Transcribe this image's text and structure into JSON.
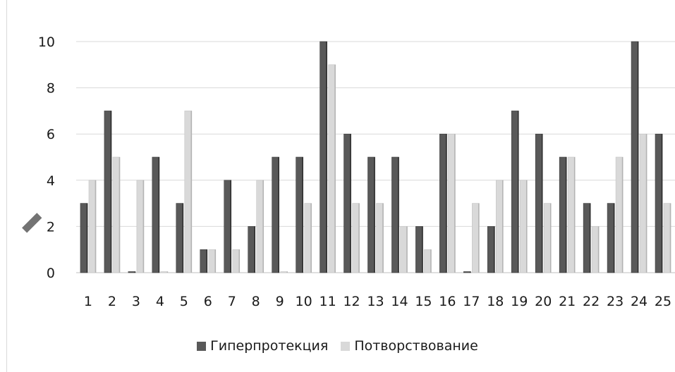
{
  "chart_data": {
    "type": "bar",
    "categories": [
      "1",
      "2",
      "3",
      "4",
      "5",
      "6",
      "7",
      "8",
      "9",
      "10",
      "11",
      "12",
      "13",
      "14",
      "15",
      "16",
      "17",
      "18",
      "19",
      "20",
      "21",
      "22",
      "23",
      "24",
      "25"
    ],
    "series": [
      {
        "name": "Гиперпротекция",
        "color": "#595959",
        "values": [
          3,
          7,
          0,
          5,
          3,
          1,
          4,
          2,
          5,
          5,
          10,
          6,
          5,
          5,
          2,
          6,
          0,
          2,
          7,
          6,
          5,
          3,
          3,
          10,
          6
        ]
      },
      {
        "name": "Потворствование",
        "color": "#d9d9d9",
        "values": [
          4,
          5,
          4,
          0,
          7,
          1,
          1,
          4,
          0,
          3,
          9,
          3,
          3,
          2,
          1,
          6,
          3,
          4,
          4,
          3,
          5,
          2,
          5,
          6,
          3
        ]
      }
    ],
    "ylim": [
      0,
      10
    ],
    "yticks": [
      "0",
      "2",
      "4",
      "6",
      "8",
      "10"
    ],
    "grid": true,
    "legend_position": "bottom"
  }
}
